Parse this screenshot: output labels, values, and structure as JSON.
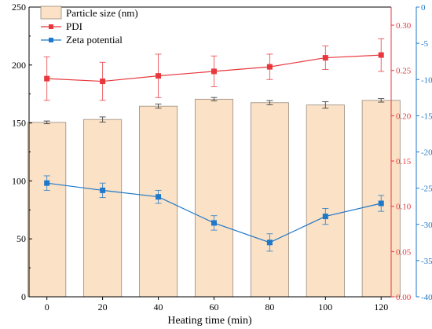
{
  "chart_data": {
    "type": "bar",
    "xlabel": "Heating time (min)",
    "categories": [
      "0",
      "20",
      "40",
      "60",
      "80",
      "100",
      "120"
    ],
    "axes": {
      "left": {
        "min": 0,
        "max": 250,
        "ticks": [
          "0",
          "50",
          "100",
          "150",
          "200",
          "250"
        ],
        "color": "#000000"
      },
      "right1": {
        "min": 0,
        "max": 0.32,
        "ticks": [
          "0.00",
          "0.05",
          "0.10",
          "0.15",
          "0.20",
          "0.25",
          "0.30"
        ],
        "color": "#e8383d"
      },
      "right2": {
        "min": -40,
        "max": 0,
        "ticks": [
          "-40",
          "-35",
          "-30",
          "-25",
          "-20",
          "-15",
          "-10",
          "-5",
          "0"
        ],
        "color": "#1f78c8"
      }
    },
    "series": [
      {
        "name": "Particle size (nm)",
        "type": "bar",
        "axis": "left",
        "values": [
          150.5,
          153,
          164.5,
          170.5,
          167.5,
          165.5,
          169.5
        ],
        "errors": [
          1.2,
          2.2,
          1.8,
          1.5,
          1.8,
          2.8,
          1.5
        ],
        "color": "#fbe1c6",
        "stroke": "#9a8b7c"
      },
      {
        "name": "PDI",
        "type": "line",
        "axis": "right1",
        "values": [
          0.241,
          0.238,
          0.244,
          0.249,
          0.254,
          0.264,
          0.267
        ],
        "errors": [
          0.024,
          0.021,
          0.024,
          0.017,
          0.014,
          0.013,
          0.018
        ],
        "color": "#e8383d"
      },
      {
        "name": "Zeta potential",
        "type": "line",
        "axis": "right2",
        "values": [
          -24.3,
          -25.3,
          -26.2,
          -29.8,
          -32.5,
          -28.9,
          -27.1
        ],
        "errors": [
          1.0,
          1.0,
          0.9,
          1.0,
          1.2,
          1.1,
          1.1
        ],
        "color": "#1f78c8"
      }
    ],
    "legend_position": "top-left"
  }
}
